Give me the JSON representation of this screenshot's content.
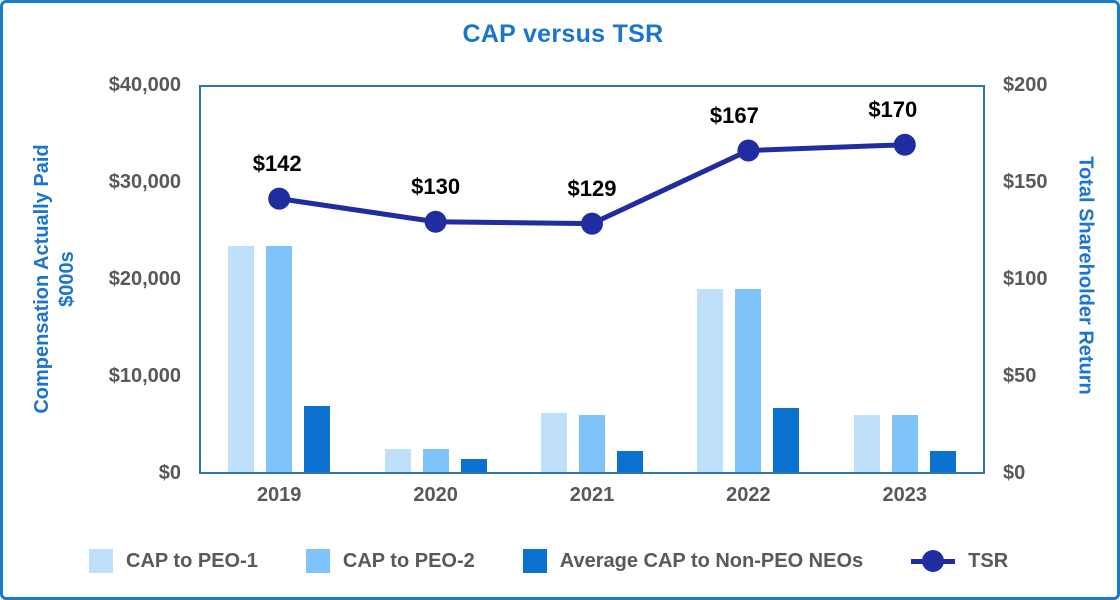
{
  "title": "CAP versus TSR",
  "left_axis": {
    "title_line1": "Compensation Actually Paid",
    "title_line2": "$000s",
    "ticks": [
      "$0",
      "$10,000",
      "$20,000",
      "$30,000",
      "$40,000"
    ]
  },
  "right_axis": {
    "title": "Total Shareholder Return",
    "ticks": [
      "$0",
      "$50",
      "$100",
      "$150",
      "$200"
    ]
  },
  "chart_data": {
    "type": "bar+line",
    "categories": [
      "2019",
      "2020",
      "2021",
      "2022",
      "2023"
    ],
    "series": [
      {
        "name": "CAP to PEO-1",
        "type": "bar",
        "axis": "left",
        "color": "#BFE0FA",
        "values": [
          23500,
          2400,
          6100,
          19000,
          5900
        ]
      },
      {
        "name": "CAP to PEO-2",
        "type": "bar",
        "axis": "left",
        "color": "#7EC4FA",
        "values": [
          23500,
          2400,
          5900,
          19000,
          5900
        ]
      },
      {
        "name": "Average CAP to Non-PEO NEOs",
        "type": "bar",
        "axis": "left",
        "color": "#0B72D0",
        "values": [
          6900,
          1400,
          2200,
          6700,
          2200
        ]
      },
      {
        "name": "TSR",
        "type": "line",
        "axis": "right",
        "color": "#1F2DA0",
        "values": [
          142,
          130,
          129,
          167,
          170
        ],
        "point_labels": [
          "$142",
          "$130",
          "$129",
          "$167",
          "$170"
        ]
      }
    ],
    "left_ylim": [
      0,
      40000
    ],
    "right_ylim": [
      0,
      200
    ],
    "grid": false,
    "legend_position": "bottom",
    "title": "CAP versus TSR",
    "left_ylabel": "Compensation Actually Paid $000s",
    "right_ylabel": "Total Shareholder Return"
  },
  "legend": {
    "items": [
      {
        "label": "CAP to PEO-1",
        "marker": "square"
      },
      {
        "label": "CAP to PEO-2",
        "marker": "square"
      },
      {
        "label": "Average CAP to Non-PEO NEOs",
        "marker": "square"
      },
      {
        "label": "TSR",
        "marker": "line-dot"
      }
    ]
  },
  "colors": {
    "outer_border": "#1B7AC9",
    "plot_border": "#2E75B6",
    "title_text": "#1B74CE",
    "axis_title_text": "#1B74CE",
    "tick_text": "#595959",
    "legend_text": "#595959",
    "data_label_text": "#000000",
    "bar_peo1": "#BFE0FA",
    "bar_peo2": "#7EC4FA",
    "bar_neos": "#0B72D0",
    "tsr_line": "#1F2DA0"
  }
}
